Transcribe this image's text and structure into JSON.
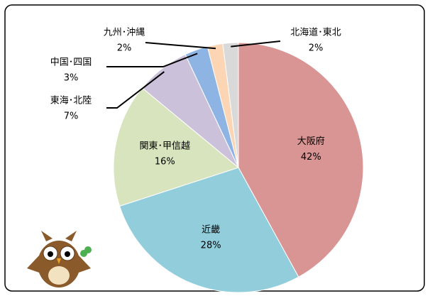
{
  "chart_data": {
    "type": "pie",
    "categories": [
      "大阪府",
      "近畿",
      "関東･甲信越",
      "東海･北陸",
      "中国･四国",
      "九州･沖縄",
      "北海道･東北"
    ],
    "values": [
      42,
      28,
      16,
      7,
      3,
      2,
      2
    ],
    "value_labels": [
      "42%",
      "28%",
      "16%",
      "7%",
      "3%",
      "2%",
      "2%"
    ],
    "colors": [
      "#d99594",
      "#92cddc",
      "#d7e4bd",
      "#ccc1da",
      "#8eb4e3",
      "#fcd5b5",
      "#d9d9d9"
    ]
  }
}
